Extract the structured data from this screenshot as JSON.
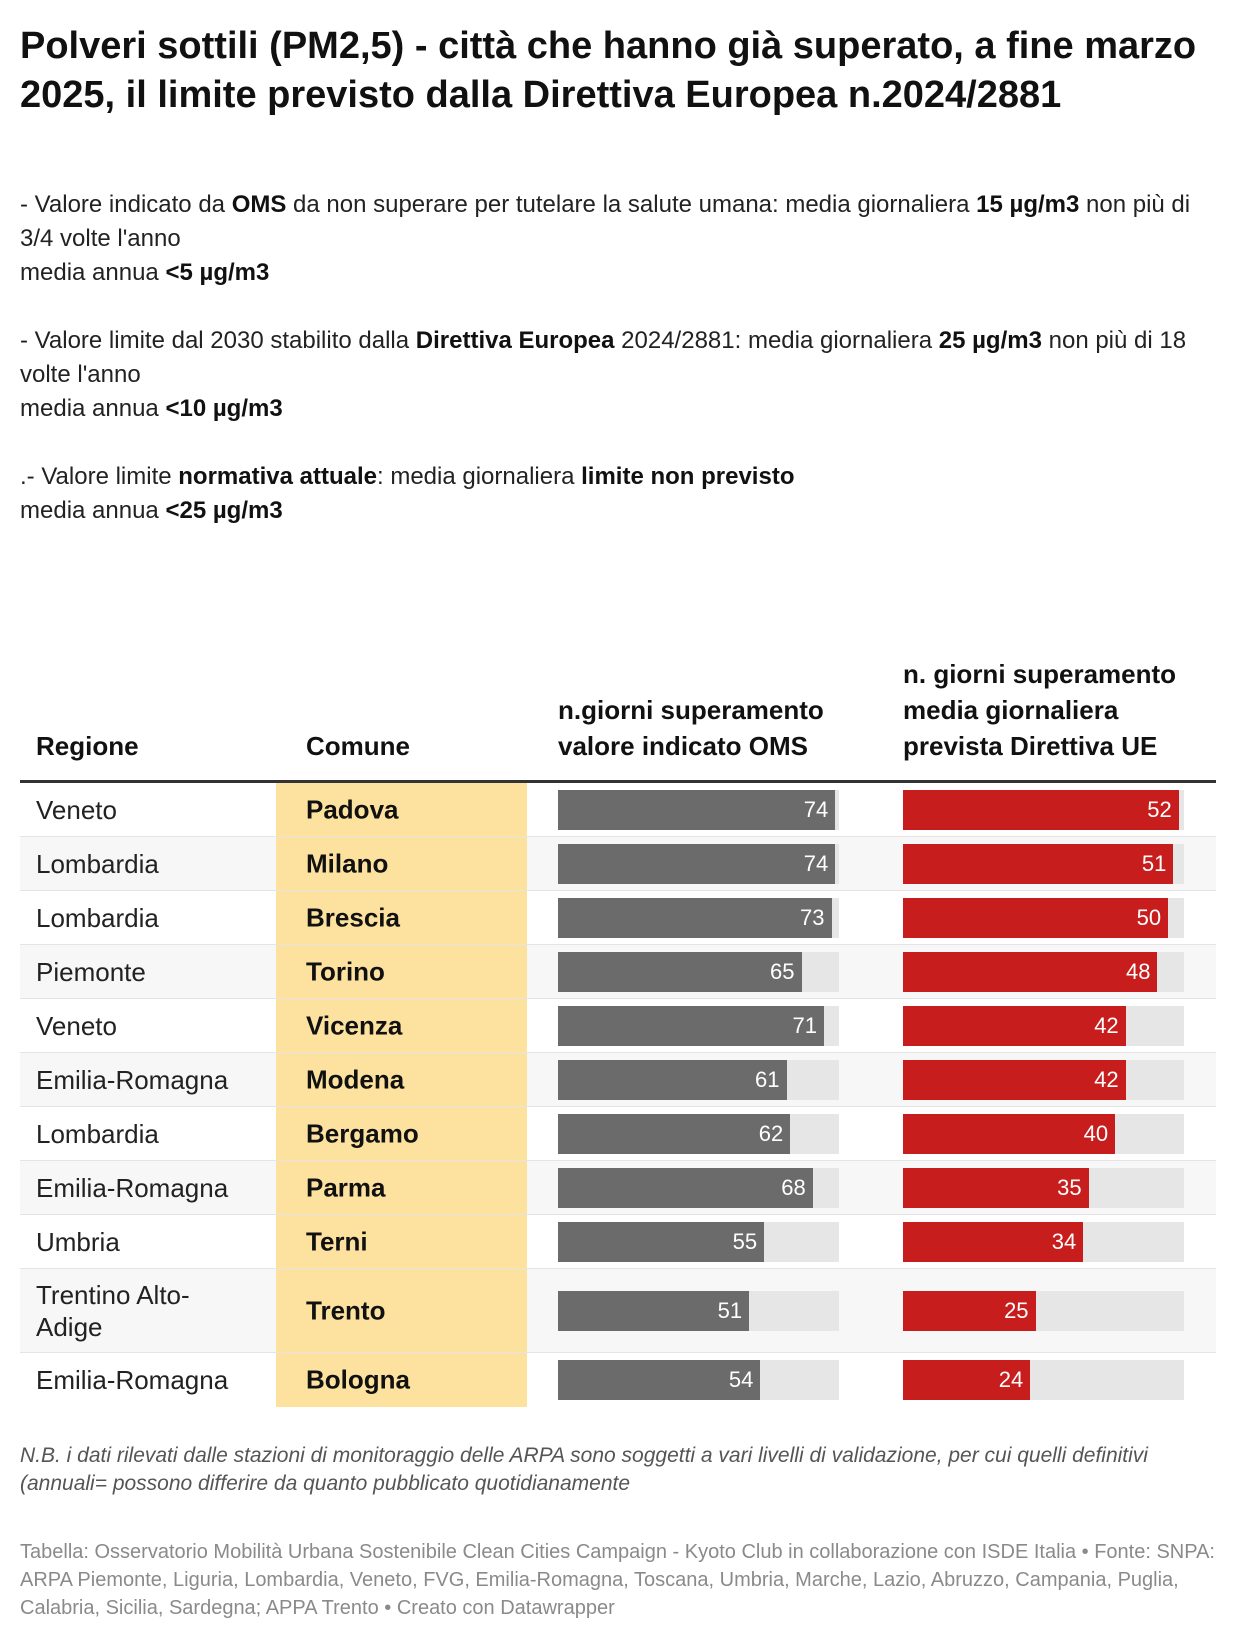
{
  "title": "Polveri sottili (PM2,5) - città che hanno già superato, a fine marzo 2025, il limite previsto dalla Direttiva Europea n.2024/2881",
  "description": [
    {
      "lines": [
        [
          {
            "t": "- Valore indicato da ",
            "b": false
          },
          {
            "t": "OMS",
            "b": true
          },
          {
            "t": " da non superare per tutelare la salute umana: media giornaliera ",
            "b": false
          },
          {
            "t": "15 µg/m3",
            "b": true
          },
          {
            "t": " non più di 3/4 volte l'anno",
            "b": false
          }
        ],
        [
          {
            "t": "media annua ",
            "b": false
          },
          {
            "t": "<5 µg/m3",
            "b": true
          }
        ]
      ]
    },
    {
      "lines": [
        [
          {
            "t": "- Valore limite dal 2030 stabilito dalla ",
            "b": false
          },
          {
            "t": "Direttiva Europea",
            "b": true
          },
          {
            "t": " 2024/2881: media giornaliera ",
            "b": false
          },
          {
            "t": "25 µg/m3",
            "b": true
          },
          {
            "t": " non più di 18 volte l'anno",
            "b": false
          }
        ],
        [
          {
            "t": "media annua ",
            "b": false
          },
          {
            "t": "<10 µg/m3",
            "b": true
          }
        ]
      ]
    },
    {
      "lines": [
        [
          {
            "t": ".- Valore limite ",
            "b": false
          },
          {
            "t": "normativa attuale",
            "b": true
          },
          {
            "t": ": media giornaliera ",
            "b": false
          },
          {
            "t": "limite non previsto",
            "b": true
          }
        ],
        [
          {
            "t": "media annua ",
            "b": false
          },
          {
            "t": "<25 µg/m3",
            "b": true
          }
        ]
      ]
    }
  ],
  "colors": {
    "oms_bar": "#6b6b6b",
    "ue_bar": "#c71e1d",
    "bar_track": "#e6e6e6",
    "comune_highlight": "#fde29f"
  },
  "chart_data": {
    "type": "table",
    "columns": [
      "Regione",
      "Comune",
      "n.giorni superamento valore indicato OMS",
      "n. giorni superamento media giornaliera prevista Direttiva UE"
    ],
    "oms_max": 74,
    "ue_max": 52,
    "rows": [
      {
        "regione": "Veneto",
        "comune": "Padova",
        "oms": 74,
        "ue": 52
      },
      {
        "regione": "Lombardia",
        "comune": "Milano",
        "oms": 74,
        "ue": 51
      },
      {
        "regione": "Lombardia",
        "comune": "Brescia",
        "oms": 73,
        "ue": 50
      },
      {
        "regione": "Piemonte",
        "comune": "Torino",
        "oms": 65,
        "ue": 48
      },
      {
        "regione": "Veneto",
        "comune": "Vicenza",
        "oms": 71,
        "ue": 42
      },
      {
        "regione": "Emilia-Romagna",
        "comune": "Modena",
        "oms": 61,
        "ue": 42
      },
      {
        "regione": "Lombardia",
        "comune": "Bergamo",
        "oms": 62,
        "ue": 40
      },
      {
        "regione": "Emilia-Romagna",
        "comune": "Parma",
        "oms": 68,
        "ue": 35
      },
      {
        "regione": "Umbria",
        "comune": "Terni",
        "oms": 55,
        "ue": 34
      },
      {
        "regione": "Trentino Alto-Adige",
        "comune": "Trento",
        "oms": 51,
        "ue": 25
      },
      {
        "regione": "Emilia-Romagna",
        "comune": "Bologna",
        "oms": 54,
        "ue": 24
      }
    ]
  },
  "headers": {
    "regione": "Regione",
    "comune": "Comune",
    "oms": "n.giorni superamento valore indicato OMS",
    "ue": "n. giorni superamento media giornaliera prevista Direttiva UE"
  },
  "note": "N.B. i dati rilevati dalle stazioni di monitoraggio delle ARPA sono soggetti a vari livelli di validazione, per cui quelli definitivi (annuali= possono differire da quanto pubblicato quotidianamente",
  "footer": "Tabella: Osservatorio Mobilità Urbana Sostenibile Clean Cities Campaign - Kyoto Club in collaborazione con ISDE Italia • Fonte: SNPA: ARPA Piemonte, Liguria, Lombardia, Veneto, FVG, Emilia-Romagna, Toscana, Umbria, Marche, Lazio, Abruzzo, Campania, Puglia, Calabria, Sicilia, Sardegna; APPA Trento • Creato con Datawrapper"
}
